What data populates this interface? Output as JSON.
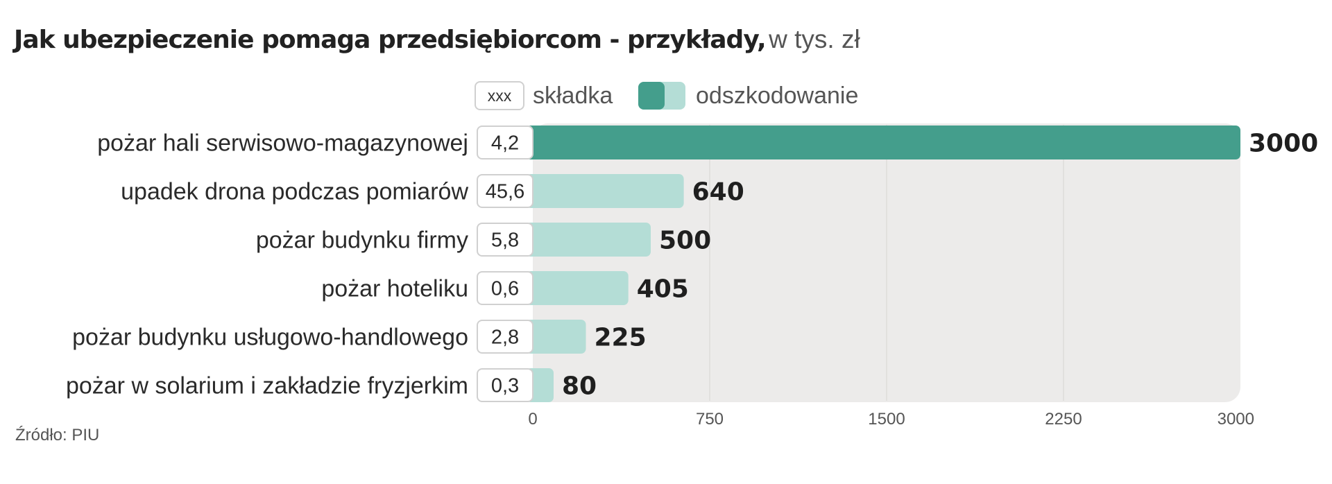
{
  "title": "Jak ubezpieczenie pomaga przedsiębiorcom - przykłady,",
  "title_unit": "w tys. zł",
  "source": "Źródło: PIU",
  "legend": {
    "fee_sample": "xxx",
    "fee_label": "składka",
    "payout_label": "odszkodowanie"
  },
  "colors": {
    "highlight_bar": "#449e8c",
    "bar": "#b4ddd6",
    "plot_background": "#ecebea"
  },
  "chart_data": {
    "type": "bar",
    "orientation": "horizontal",
    "categories": [
      "pożar hali serwisowo-magazynowej",
      "upadek drona podczas pomiarów",
      "pożar budynku firmy",
      "pożar hoteliku",
      "pożar budynku usługowo-handlowego",
      "pożar w solarium i zakładzie fryzjerkim"
    ],
    "series": [
      {
        "name": "odszkodowanie",
        "values": [
          3000,
          640,
          500,
          405,
          225,
          80
        ]
      },
      {
        "name": "składka",
        "values": [
          "4,2",
          "45,6",
          "5,8",
          "0,6",
          "2,8",
          "0,3"
        ]
      }
    ],
    "value_labels": [
      "3000",
      "640",
      "500",
      "405",
      "225",
      "80"
    ],
    "xlim": [
      0,
      3000
    ],
    "xticks": [
      "0",
      "750",
      "1500",
      "2250",
      "3000"
    ],
    "grid": true,
    "legend_position": "top"
  }
}
